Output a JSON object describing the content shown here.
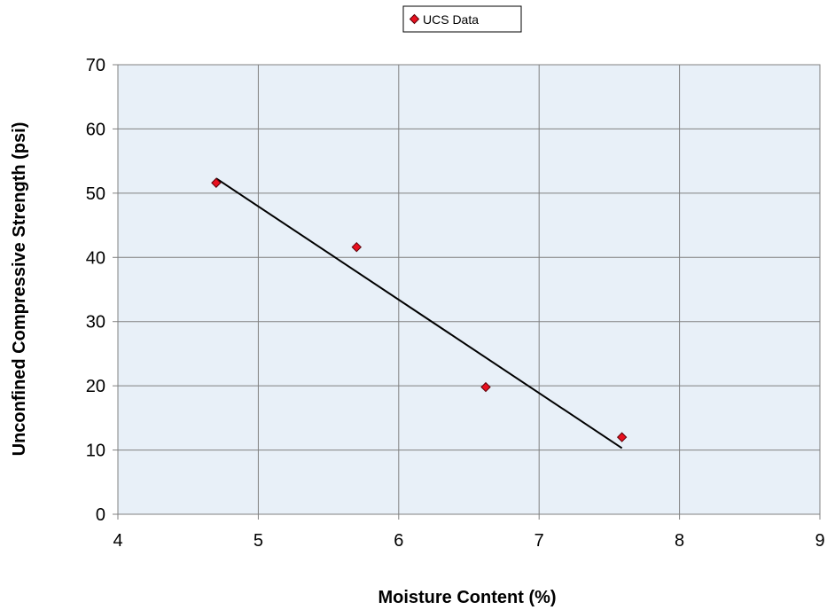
{
  "chart_data": {
    "type": "scatter",
    "title": "",
    "xlabel": "Moisture Content (%)",
    "ylabel": "Unconfined Compressive Strength (psi)",
    "xlim": [
      4,
      9
    ],
    "ylim": [
      0,
      70
    ],
    "xticks": [
      "4",
      "5",
      "6",
      "7",
      "8",
      "9"
    ],
    "yticks": [
      "0",
      "10",
      "20",
      "30",
      "40",
      "50",
      "60",
      "70"
    ],
    "grid": true,
    "legend_position": "top-center",
    "series": [
      {
        "name": "UCS Data",
        "marker": "diamond",
        "color": "#e8101f",
        "points": [
          {
            "x": 4.7,
            "y": 51.6
          },
          {
            "x": 5.7,
            "y": 41.6
          },
          {
            "x": 6.62,
            "y": 19.8
          },
          {
            "x": 7.59,
            "y": 12.0
          }
        ]
      }
    ],
    "trendline": {
      "type": "linear",
      "color": "#000000",
      "from": {
        "x": 4.7,
        "y": 52.3
      },
      "to": {
        "x": 7.59,
        "y": 10.3
      }
    }
  },
  "colors": {
    "plot_background": "#e8f0f8",
    "gridline": "#808080",
    "axis": "#808080",
    "marker_fill": "#e8101f",
    "marker_stroke": "#5a0008"
  }
}
